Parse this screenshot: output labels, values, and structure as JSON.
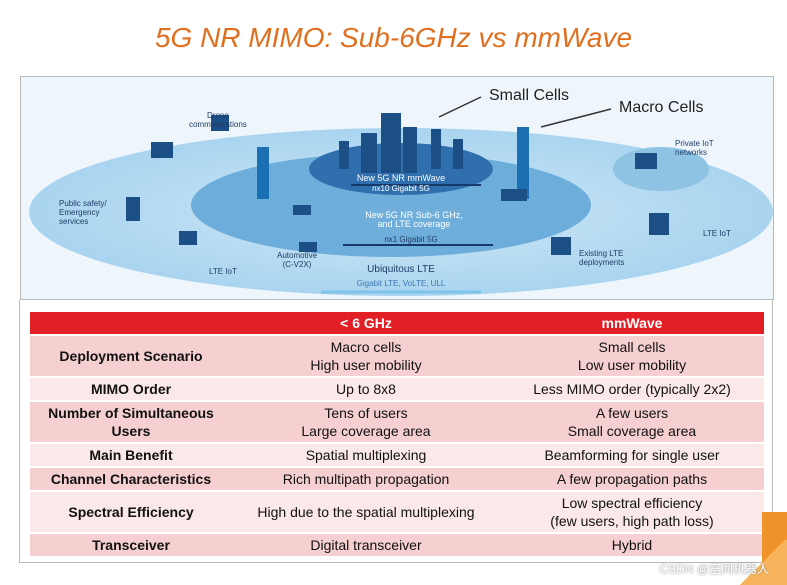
{
  "title": "5G NR MIMO: Sub-6GHz vs mmWave",
  "diagram": {
    "callouts": {
      "small_cells": "Small Cells",
      "macro_cells": "Macro Cells"
    },
    "labels": {
      "drone": "Drone\ncommunications",
      "public_safety": "Public safety/\nEmergency\nservices",
      "lte_iot_left": "LTE IoT",
      "automotive": "Automotive\n(C-V2X)",
      "mmwave_title": "New 5G NR mmWave",
      "mmwave_sub": "nx10 Gigabit 5G",
      "sub6_title": "New 5G NR Sub-6 GHz,\nand LTE coverage",
      "sub6_sub": "nx1 Gigabit 5G",
      "lte_title": "Ubiquitous LTE",
      "lte_sub": "Gigabit LTE, VoLTE, ULL",
      "existing_lte": "Existing LTE\ndeployments",
      "private_iot": "Private IoT\nnetworks",
      "lte_iot_right": "LTE IoT"
    }
  },
  "table": {
    "headers": [
      "",
      "< 6 GHz",
      "mmWave"
    ],
    "rows": [
      [
        "Deployment Scenario",
        "Macro cells\nHigh user mobility",
        "Small cells\nLow user mobility"
      ],
      [
        "MIMO Order",
        "Up to 8x8",
        "Less MIMO order (typically 2x2)"
      ],
      [
        "Number of Simultaneous\nUsers",
        "Tens of users\nLarge coverage area",
        "A few users\nSmall coverage area"
      ],
      [
        "Main Benefit",
        "Spatial multiplexing",
        "Beamforming for single user"
      ],
      [
        "Channel Characteristics",
        "Rich multipath propagation",
        "A few propagation paths"
      ],
      [
        "Spectral Efficiency",
        "High due to the spatial multiplexing",
        "Low spectral efficiency\n(few users, high path loss)"
      ],
      [
        "Transceiver",
        "Digital transceiver",
        "Hybrid"
      ]
    ]
  },
  "watermark": "CSDN @室间机器人",
  "colors": {
    "title": "#e0701f",
    "header": "#e31f26",
    "row_dark": "#f6cfd0",
    "row_light": "#fbe8e8"
  }
}
